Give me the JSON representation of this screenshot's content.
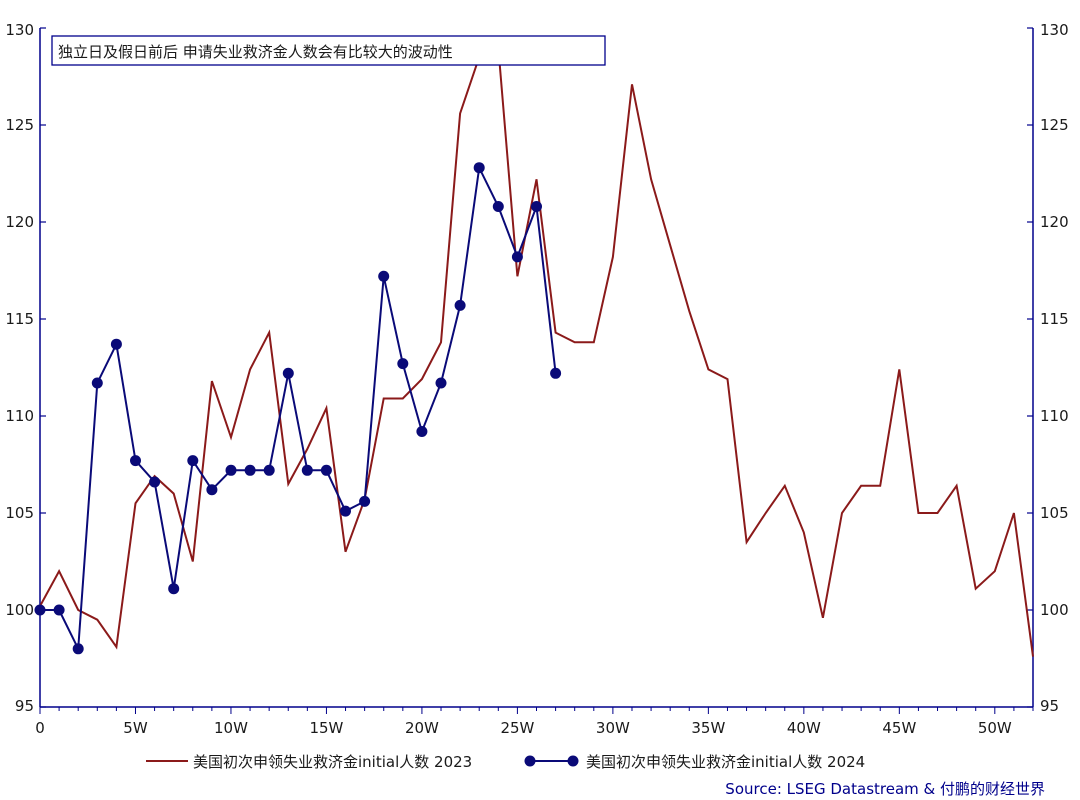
{
  "chart_data": {
    "type": "line",
    "title": "独立日及假日前后 申请失业救济金人数会有比较大的波动性",
    "source": "Source: LSEG Datastream & 付鹏的财经世界",
    "xlim": [
      0,
      52
    ],
    "ylim": [
      95,
      130
    ],
    "x_ticks": [
      0,
      5,
      10,
      15,
      20,
      25,
      30,
      35,
      40,
      45,
      50
    ],
    "x_tick_labels": [
      "0",
      "5W",
      "10W",
      "15W",
      "20W",
      "25W",
      "30W",
      "35W",
      "40W",
      "45W",
      "50W"
    ],
    "y_ticks": [
      95,
      100,
      105,
      110,
      115,
      120,
      125,
      130
    ],
    "y_tick_labels": [
      "95",
      "100",
      "105",
      "110",
      "115",
      "120",
      "125",
      "130"
    ],
    "grid": false,
    "legend_position": "bottom",
    "colors": {
      "series_2023": "#8b1a1a",
      "series_2024": "#0a0a78",
      "axis": "#00008b",
      "title_border": "#00008b"
    },
    "series": [
      {
        "name": "美国初次申领失业救济金initial人数 2023",
        "color": "#8b1a1a",
        "marker": "none",
        "x": [
          0,
          1,
          2,
          3,
          4,
          5,
          6,
          7,
          8,
          9,
          10,
          11,
          12,
          13,
          14,
          15,
          16,
          17,
          18,
          19,
          20,
          21,
          22,
          23,
          24,
          25,
          26,
          27,
          28,
          29,
          30,
          31,
          32,
          33,
          34,
          35,
          36,
          37,
          38,
          39,
          40,
          41,
          42,
          43,
          44,
          45,
          46,
          47,
          48,
          49,
          50,
          51,
          52
        ],
        "y": [
          100.2,
          102.0,
          100.0,
          99.5,
          98.1,
          105.5,
          106.9,
          106.0,
          102.5,
          111.8,
          108.9,
          112.4,
          114.3,
          106.5,
          108.3,
          110.4,
          103.0,
          105.7,
          110.9,
          110.9,
          111.9,
          113.8,
          125.6,
          128.5,
          129.0,
          117.2,
          122.2,
          114.3,
          113.8,
          113.8,
          118.2,
          127.1,
          122.2,
          118.8,
          115.4,
          112.4,
          111.9,
          103.5,
          105.0,
          106.4,
          104.0,
          99.6,
          105.0,
          106.4,
          106.4,
          112.4,
          105.0,
          105.0,
          106.4,
          101.1,
          102.0,
          105.0,
          97.6
        ]
      },
      {
        "name": "美国初次申领失业救济金initial人数 2024",
        "color": "#0a0a78",
        "marker": "circle",
        "x": [
          0,
          1,
          2,
          3,
          4,
          5,
          6,
          7,
          8,
          9,
          10,
          11,
          12,
          13,
          14,
          15,
          16,
          17,
          18,
          19,
          20,
          21,
          22,
          23,
          24,
          25,
          26,
          27
        ],
        "y": [
          100.0,
          100.0,
          98.0,
          111.7,
          113.7,
          107.7,
          106.6,
          101.1,
          107.7,
          106.2,
          107.2,
          107.2,
          107.2,
          112.2,
          107.2,
          107.2,
          105.1,
          105.6,
          117.2,
          112.7,
          109.2,
          111.7,
          115.7,
          122.8,
          120.8,
          118.2,
          120.8,
          112.2
        ]
      }
    ]
  }
}
